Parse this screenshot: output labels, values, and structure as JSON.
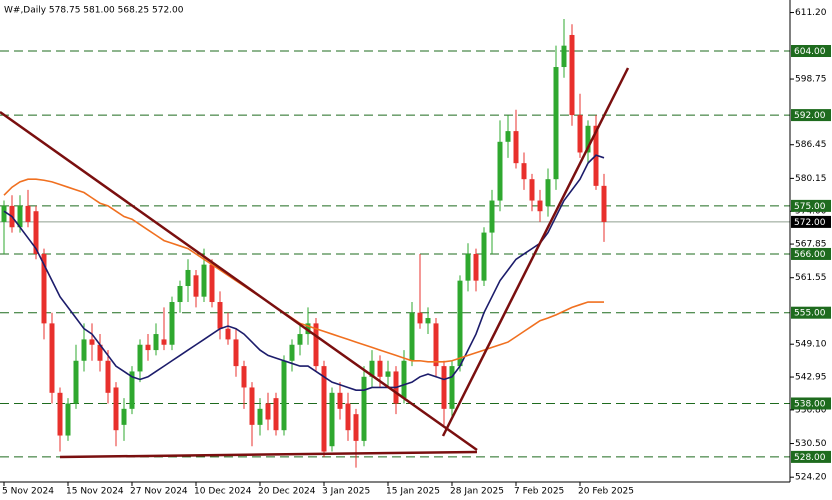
{
  "chart_data": {
    "type": "candlestick",
    "header": "W#,Daily  578.75 581.00 568.25 572.00",
    "categories": [
      "5 Nov 2024",
      null,
      null,
      null,
      null,
      null,
      null,
      null,
      "15 Nov 2024",
      null,
      null,
      null,
      null,
      null,
      null,
      null,
      "27 Nov 2024",
      null,
      null,
      null,
      null,
      null,
      null,
      null,
      "10 Dec 2024",
      null,
      null,
      null,
      null,
      null,
      null,
      null,
      "20 Dec 2024",
      null,
      null,
      null,
      null,
      null,
      null,
      null,
      "3 Jan 2025",
      null,
      null,
      null,
      null,
      null,
      null,
      null,
      "15 Jan 2025",
      null,
      null,
      null,
      null,
      null,
      null,
      null,
      "28 Jan 2025",
      null,
      null,
      null,
      null,
      null,
      null,
      null,
      "7 Feb 2025",
      null,
      null,
      null,
      null,
      null,
      null,
      null,
      "20 Feb 2025",
      null,
      null,
      null
    ],
    "open": [
      572,
      575,
      571,
      575,
      574,
      566,
      553,
      540,
      532,
      538,
      546,
      550,
      549,
      546,
      541,
      534,
      537,
      544,
      549,
      548,
      550,
      549,
      557,
      560,
      562,
      558,
      564,
      557,
      552,
      550,
      545,
      541,
      534,
      538,
      539,
      533,
      546,
      549,
      551,
      553,
      545,
      530,
      540,
      538,
      536,
      531,
      543,
      546,
      543,
      544,
      539,
      546,
      555,
      553,
      553,
      545,
      537,
      545,
      561,
      566,
      561,
      570,
      576,
      587,
      589,
      583,
      580,
      576,
      575,
      580,
      601,
      607,
      592,
      585,
      590,
      578.75
    ],
    "high": [
      576,
      577,
      577,
      578,
      575,
      567,
      555,
      541,
      539,
      549,
      553,
      553,
      551,
      548,
      542,
      539,
      545,
      550,
      551,
      553,
      556,
      558,
      561,
      565,
      563,
      567,
      565,
      559,
      555,
      552,
      546,
      542,
      539,
      540,
      540,
      547,
      550,
      553,
      556,
      554,
      546,
      541,
      542,
      540,
      537,
      545,
      548,
      547,
      546,
      545,
      548,
      557,
      566,
      556,
      554,
      546,
      546,
      562,
      568,
      567,
      571,
      578,
      591,
      592,
      593,
      585,
      581,
      578,
      582,
      605,
      610,
      609,
      596,
      591,
      592,
      581
    ],
    "low": [
      566,
      570,
      570,
      571,
      565,
      550,
      538,
      529,
      531,
      537,
      544,
      546,
      544,
      538,
      530,
      531,
      536,
      542,
      546,
      547,
      548,
      548,
      555,
      557,
      556,
      557,
      556,
      550,
      549,
      543,
      537,
      530,
      532,
      533,
      532,
      532,
      544,
      547,
      549,
      544,
      528,
      529,
      535,
      531,
      526,
      530,
      541,
      541,
      541,
      536,
      538,
      545,
      552,
      551,
      543,
      534,
      535,
      544,
      559,
      559,
      560,
      566,
      574,
      584,
      582,
      578,
      574,
      572,
      573,
      578,
      599,
      590,
      584,
      583,
      578,
      568.25
    ],
    "close": [
      575,
      571,
      575,
      572,
      566,
      553,
      540,
      532,
      538,
      546,
      550,
      549,
      546,
      540,
      533,
      537,
      544,
      549,
      548,
      551,
      549,
      557,
      560,
      563,
      558,
      564,
      557,
      552,
      550,
      545,
      541,
      534,
      537,
      535,
      533,
      546,
      549,
      551,
      553,
      545,
      529,
      540,
      537,
      533,
      531,
      543,
      546,
      543,
      544,
      538,
      546,
      555,
      553,
      554,
      545,
      537,
      545,
      561,
      566,
      561,
      570,
      576,
      587,
      589,
      583,
      580,
      576,
      574,
      580,
      601,
      605,
      592,
      585,
      590,
      578.75,
      572
    ],
    "up_color": "#2fa82f",
    "down_color": "#e8302c",
    "series": [
      {
        "color": "#1c1c6b",
        "values": [
          574,
          573,
          571,
          569,
          567,
          564,
          561,
          558,
          556,
          554,
          552,
          551,
          549,
          547,
          545,
          544,
          543,
          542.5,
          543,
          544,
          545,
          546,
          547,
          548,
          549,
          550,
          551,
          552,
          552.5,
          552,
          551,
          549.5,
          548,
          547,
          546.5,
          546,
          545.5,
          545,
          545,
          544,
          543,
          542,
          541.5,
          541,
          540.5,
          540.5,
          541,
          541,
          541,
          541,
          541.5,
          542,
          543,
          543.5,
          543,
          542.5,
          543,
          545,
          548,
          551,
          555,
          558,
          561,
          563,
          565,
          566,
          567,
          568,
          570,
          573,
          576,
          578,
          580,
          583,
          584.5,
          584
        ]
      },
      {
        "color": "#f07020",
        "values": [
          577,
          578.5,
          579.5,
          580,
          580,
          579.8,
          579.5,
          579,
          578.5,
          578,
          577.5,
          576.5,
          575.5,
          575,
          574,
          573,
          572.5,
          571.5,
          570.5,
          569.5,
          568.5,
          568,
          567.5,
          567,
          566,
          565,
          564,
          563,
          562,
          561,
          560,
          559,
          558,
          557,
          556,
          555,
          554,
          553,
          552.5,
          552,
          551.5,
          551,
          550.5,
          550,
          549.5,
          549,
          548.5,
          548,
          547.5,
          547,
          546.5,
          546,
          546,
          545.8,
          545.8,
          545.8,
          546,
          546.5,
          547,
          547.5,
          548,
          548.5,
          549,
          549.5,
          550.5,
          551.5,
          552.5,
          553.5,
          554,
          554.6,
          555.3,
          556,
          556.5,
          557,
          557,
          557
        ]
      }
    ],
    "ylim": [
      523.3,
      613.55
    ],
    "yticks": [
      {
        "value": 611.2,
        "label": "611.20"
      },
      {
        "value": 598.75,
        "label": "598.75"
      },
      {
        "value": 586.45,
        "label": "586.45"
      },
      {
        "value": 580.15,
        "label": "580.15"
      },
      {
        "value": 574,
        "label": "574.00"
      },
      {
        "value": 567.85,
        "label": "567.85"
      },
      {
        "value": 561.55,
        "label": "561.55"
      },
      {
        "value": 549.1,
        "label": "549.10"
      },
      {
        "value": 542.95,
        "label": "542.95"
      },
      {
        "value": 536.8,
        "label": "536.80"
      },
      {
        "value": 530.5,
        "label": "530.50"
      },
      {
        "value": 524.2,
        "label": "524.20"
      }
    ],
    "levels": [
      {
        "value": 604,
        "label": "604.00"
      },
      {
        "value": 592,
        "label": "592.00"
      },
      {
        "value": 575,
        "label": "575.00"
      },
      {
        "value": 566,
        "label": "566.00"
      },
      {
        "value": 555,
        "label": "555.00"
      },
      {
        "value": 538,
        "label": "538.00"
      },
      {
        "value": 528,
        "label": "528.00"
      }
    ],
    "level_color": "#1e6b1e",
    "last_price": {
      "value": 572,
      "label": "572.00"
    }
  }
}
